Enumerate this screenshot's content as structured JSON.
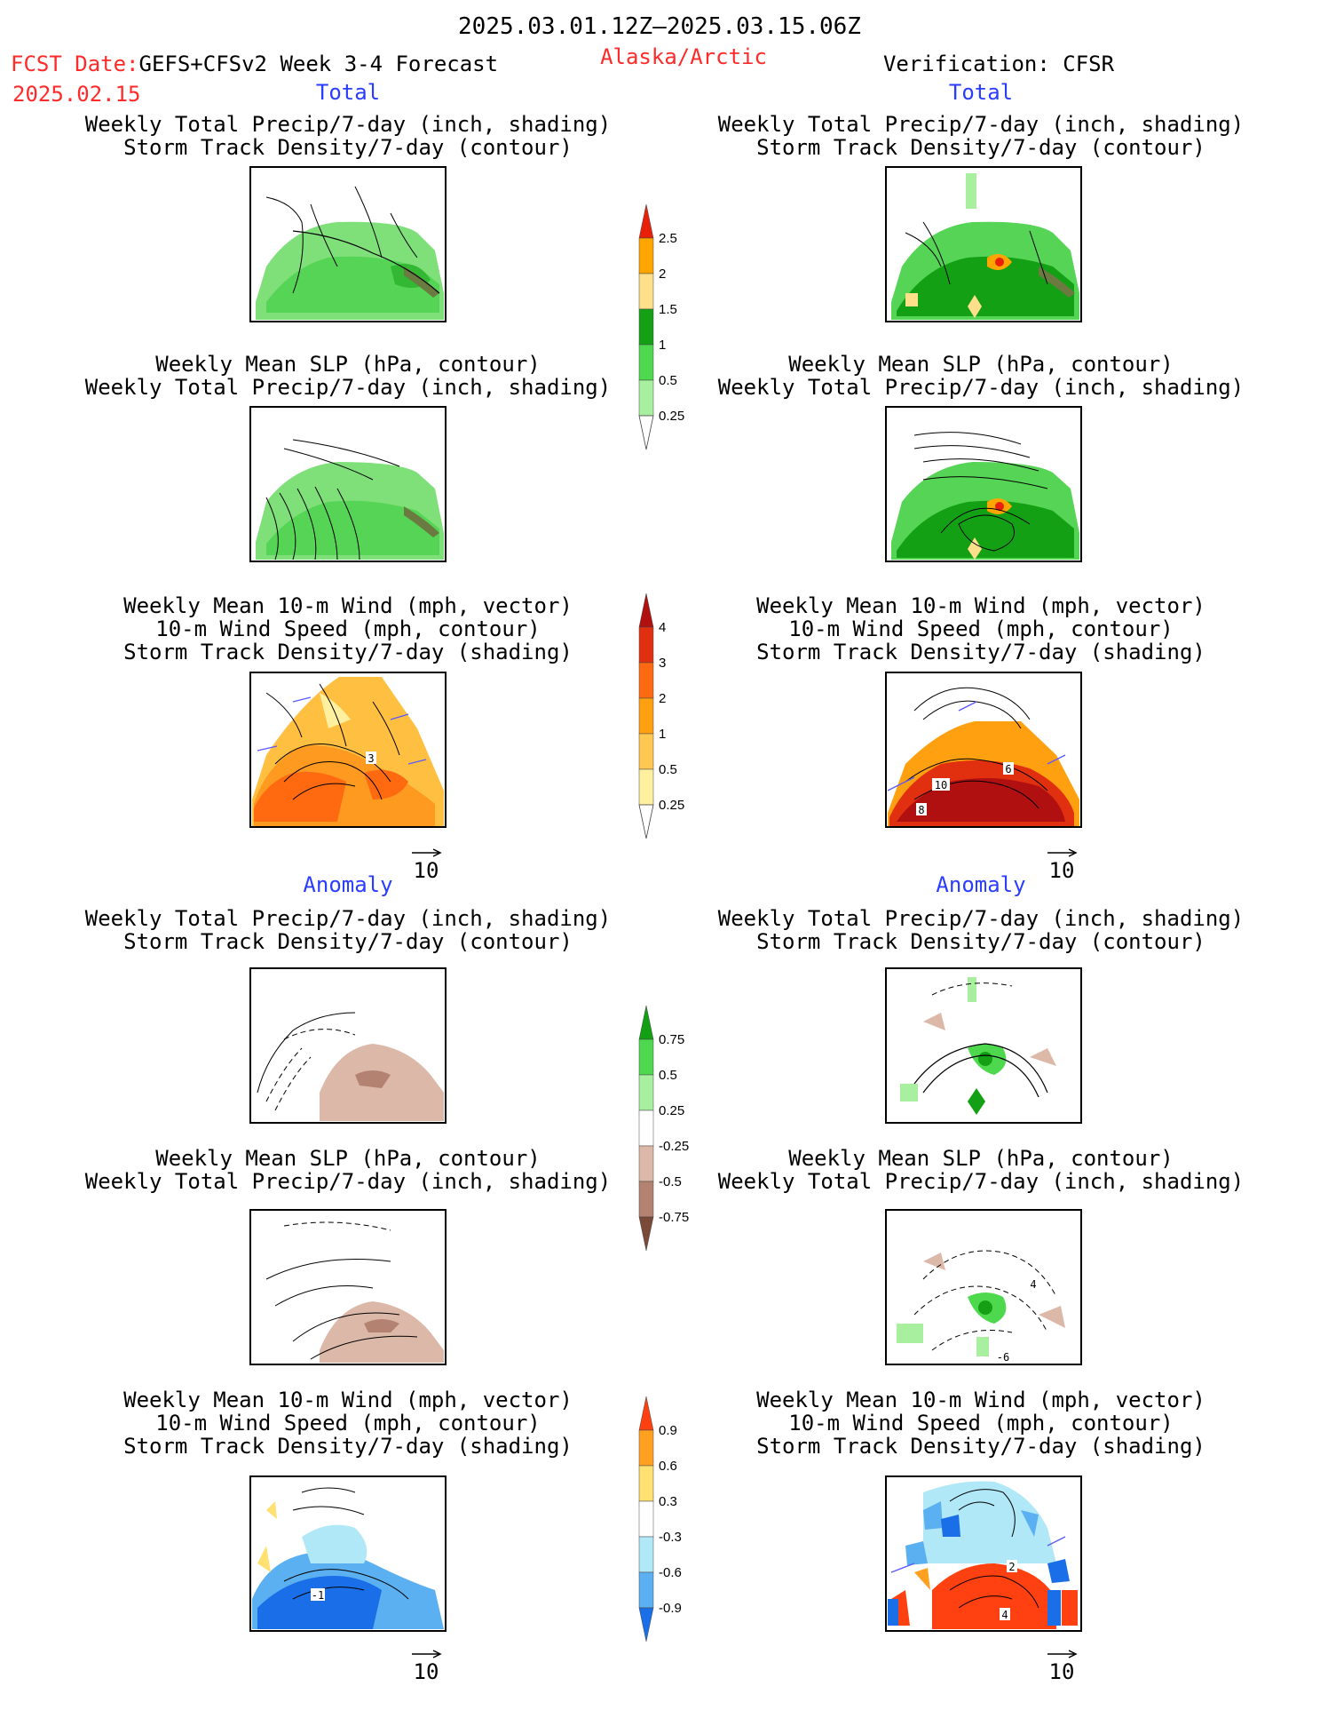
{
  "header": {
    "period": "2025.03.01.12Z–2025.03.15.06Z",
    "fcst_prefix": "FCST Date:",
    "forecast": "GEFS+CFSv2 Week 3-4 Forecast",
    "fcst_date": "2025.02.15",
    "region": "Alaska/Arctic",
    "verification": "Verification: CFSR"
  },
  "sections": {
    "total": "Total",
    "anomaly": "Anomaly"
  },
  "titles": {
    "precip_shading": "Weekly Total Precip/7-day (inch, shading)",
    "storm_contour": "Storm Track Density/7-day (contour)",
    "slp_contour": "Weekly Mean SLP (hPa, contour)",
    "wind_vector": "Weekly Mean 10-m Wind (mph, vector)",
    "wind_speed": "10-m Wind Speed (mph, contour)",
    "storm_shading": "Storm Track Density/7-day (shading)"
  },
  "vector_ref": "10",
  "colorbars": {
    "precip_total": {
      "labels": [
        "2.5",
        "2",
        "1.5",
        "1",
        "0.5",
        "0.25"
      ],
      "colors": [
        "#e8200a",
        "#ffa500",
        "#ffe08a",
        "#14a014",
        "#4ed84e",
        "#a8f0a0"
      ]
    },
    "storm_total": {
      "labels": [
        "4",
        "3",
        "2",
        "1",
        "0.5",
        "0.25"
      ],
      "colors": [
        "#b01010",
        "#e03010",
        "#ff6a10",
        "#ffa010",
        "#ffc850",
        "#fff0a0"
      ]
    },
    "precip_anom": {
      "labels": [
        "0.75",
        "0.5",
        "0.25",
        "-0.25",
        "-0.5",
        "-0.75"
      ],
      "colors": [
        "#14a014",
        "#4ed84e",
        "#a8f0a0",
        "#ffffff",
        "#dcb8a8",
        "#b48270",
        "#7a4a38"
      ]
    },
    "storm_anom": {
      "labels": [
        "0.9",
        "0.6",
        "0.3",
        "-0.3",
        "-0.6",
        "-0.9"
      ],
      "colors": [
        "#ff4010",
        "#ffa020",
        "#ffe070",
        "#ffffff",
        "#b0e8f8",
        "#5ab0f0",
        "#1a6ee8"
      ]
    }
  },
  "map_labels": {
    "wind_total_left": "3",
    "wind_total_right_a": "10",
    "wind_total_right_b": "8",
    "wind_total_right_c": "6",
    "slp_anom_right_a": "4",
    "slp_anom_right_b": "-6",
    "wind_anom_left": "-1",
    "wind_anom_right_a": "4",
    "wind_anom_right_b": "2"
  }
}
